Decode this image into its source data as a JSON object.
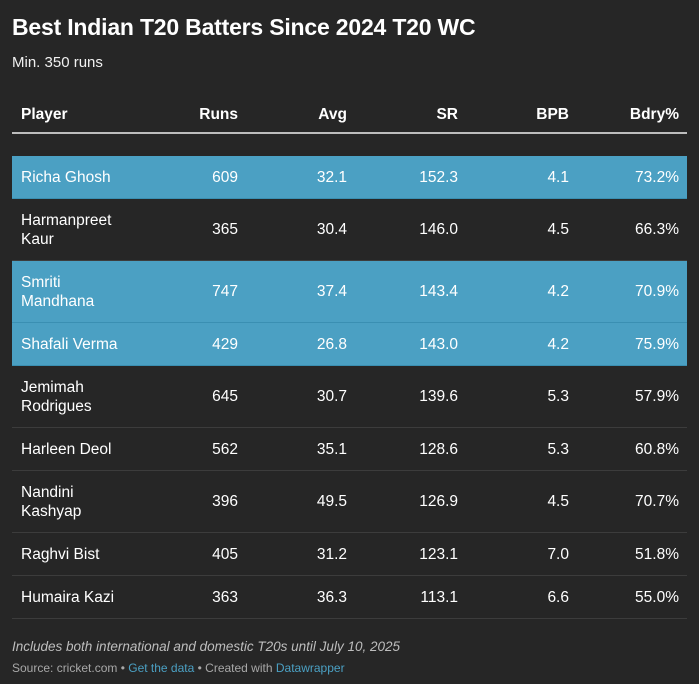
{
  "title": "Best Indian T20 Batters Since 2024 T20 WC",
  "subtitle": "Min. 350 runs",
  "colors": {
    "background": "#262626",
    "highlight": "#4ba0c3",
    "link": "#4ba0c3"
  },
  "chart_data": {
    "type": "table",
    "columns": [
      "Player",
      "Runs",
      "Avg",
      "SR",
      "BPB",
      "Bdry%"
    ],
    "rows": [
      {
        "player": "Richa Ghosh",
        "runs": "609",
        "avg": "32.1",
        "sr": "152.3",
        "bpb": "4.1",
        "bdry": "73.2%",
        "highlighted": true
      },
      {
        "player": "Harmanpreet Kaur",
        "runs": "365",
        "avg": "30.4",
        "sr": "146.0",
        "bpb": "4.5",
        "bdry": "66.3%",
        "highlighted": false
      },
      {
        "player": "Smriti Mandhana",
        "runs": "747",
        "avg": "37.4",
        "sr": "143.4",
        "bpb": "4.2",
        "bdry": "70.9%",
        "highlighted": true
      },
      {
        "player": "Shafali Verma",
        "runs": "429",
        "avg": "26.8",
        "sr": "143.0",
        "bpb": "4.2",
        "bdry": "75.9%",
        "highlighted": true
      },
      {
        "player": "Jemimah Rodrigues",
        "runs": "645",
        "avg": "30.7",
        "sr": "139.6",
        "bpb": "5.3",
        "bdry": "57.9%",
        "highlighted": false
      },
      {
        "player": "Harleen Deol",
        "runs": "562",
        "avg": "35.1",
        "sr": "128.6",
        "bpb": "5.3",
        "bdry": "60.8%",
        "highlighted": false
      },
      {
        "player": "Nandini Kashyap",
        "runs": "396",
        "avg": "49.5",
        "sr": "126.9",
        "bpb": "4.5",
        "bdry": "70.7%",
        "highlighted": false
      },
      {
        "player": "Raghvi Bist",
        "runs": "405",
        "avg": "31.2",
        "sr": "123.1",
        "bpb": "7.0",
        "bdry": "51.8%",
        "highlighted": false
      },
      {
        "player": "Humaira Kazi",
        "runs": "363",
        "avg": "36.3",
        "sr": "113.1",
        "bpb": "6.6",
        "bdry": "55.0%",
        "highlighted": false
      }
    ]
  },
  "footer": {
    "note": "Includes both international and domestic T20s until July 10, 2025",
    "source_label": "Source: cricket.com • ",
    "get_data": "Get the data",
    "created_with": " • Created with ",
    "datawrapper": "Datawrapper"
  }
}
